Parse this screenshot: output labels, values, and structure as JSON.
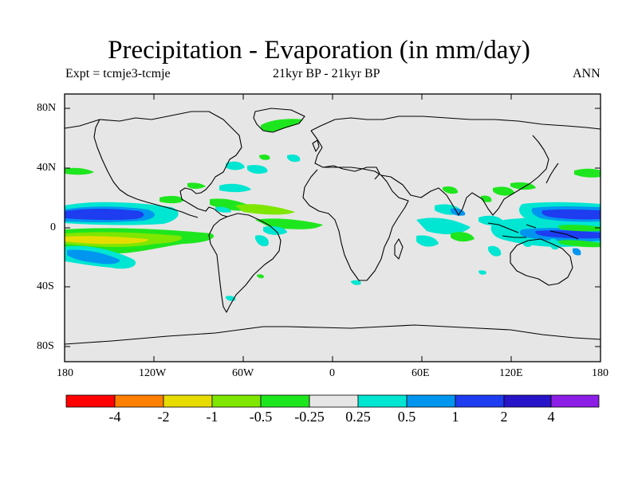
{
  "title": "Precipitation - Evaporation (in mm/day)",
  "subtitle_left": "Expt = tcmje3-tcmje",
  "subtitle_center": "21kyr BP - 21kyr BP",
  "subtitle_right": "ANN",
  "y_ticks": [
    "80N",
    "40N",
    "0",
    "40S",
    "80S"
  ],
  "x_ticks": [
    "180",
    "120W",
    "60W",
    "0",
    "60E",
    "120E",
    "180"
  ],
  "colorbar": {
    "colors": [
      "#ff0000",
      "#ff7f00",
      "#e6dc00",
      "#7fe600",
      "#1ee61e",
      "#e6e6e6",
      "#00e6d2",
      "#0096f0",
      "#1e3cf0",
      "#2814c8",
      "#8c1ee6"
    ],
    "labels": [
      "-4",
      "-2",
      "-1",
      "-0.5",
      "-0.25",
      "0.25",
      "0.5",
      "1",
      "2",
      "4"
    ]
  },
  "chart_data": {
    "type": "heatmap",
    "title": "Precipitation - Evaporation (in mm/day)",
    "xlim": [
      -180,
      180
    ],
    "ylim": [
      -90,
      90
    ],
    "regions": [
      {
        "desc": "tropical North Pacific",
        "lon": [
          -180,
          -130
        ],
        "lat": [
          4,
          14
        ],
        "value": 3
      },
      {
        "desc": "equatorial South Pacific",
        "lon": [
          -180,
          -120
        ],
        "lat": [
          -12,
          -2
        ],
        "value": -1
      },
      {
        "desc": "South Pacific",
        "lon": [
          -175,
          -140
        ],
        "lat": [
          -30,
          -15
        ],
        "value": 0.75
      },
      {
        "desc": "tropical western Pacific",
        "lon": [
          145,
          180
        ],
        "lat": [
          4,
          12
        ],
        "value": 3
      },
      {
        "desc": "Indian Ocean",
        "lon": [
          55,
          80
        ],
        "lat": [
          -15,
          0
        ],
        "value": 0.4
      },
      {
        "desc": "tropical Atlantic",
        "lon": [
          -60,
          -10
        ],
        "lat": [
          -8,
          2
        ],
        "value": -0.35
      }
    ]
  }
}
